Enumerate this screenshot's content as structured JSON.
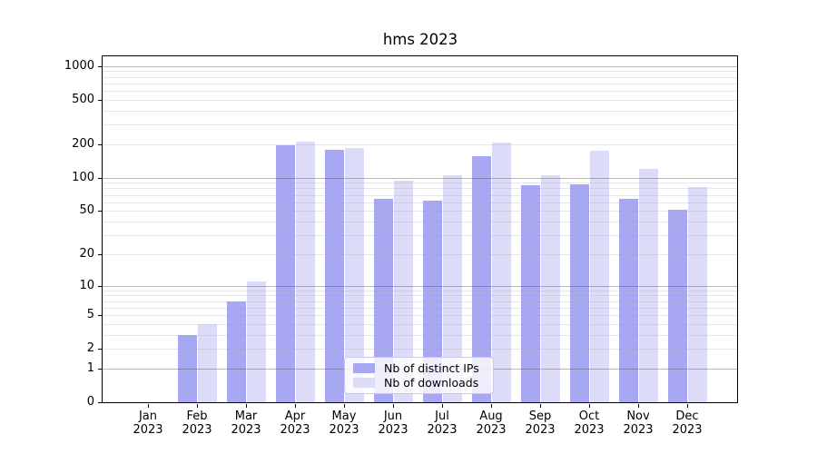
{
  "title": "hms 2023",
  "chart_data": {
    "type": "bar",
    "title": "hms 2023",
    "y_scale": "log1p",
    "ylim": [
      0,
      1220
    ],
    "grid": "both",
    "legend_position": "lower-center",
    "yticks": [
      {
        "label": "1000",
        "value": 1000
      },
      {
        "label": "500",
        "value": 500
      },
      {
        "label": "200",
        "value": 200
      },
      {
        "label": "100",
        "value": 100
      },
      {
        "label": "50",
        "value": 50
      },
      {
        "label": "20",
        "value": 20
      },
      {
        "label": "10",
        "value": 10
      },
      {
        "label": "5",
        "value": 5
      },
      {
        "label": "2",
        "value": 2
      },
      {
        "label": "1",
        "value": 1
      },
      {
        "label": "0",
        "value": 0
      }
    ],
    "grid_major_values": [
      1,
      10,
      100,
      1000
    ],
    "grid_minor_values": [
      2,
      3,
      4,
      5,
      6,
      7,
      8,
      9,
      20,
      30,
      40,
      50,
      60,
      70,
      80,
      90,
      200,
      300,
      400,
      500,
      600,
      700,
      800,
      900
    ],
    "categories": [
      {
        "month": "Jan",
        "year": "2023"
      },
      {
        "month": "Feb",
        "year": "2023"
      },
      {
        "month": "Mar",
        "year": "2023"
      },
      {
        "month": "Apr",
        "year": "2023"
      },
      {
        "month": "May",
        "year": "2023"
      },
      {
        "month": "Jun",
        "year": "2023"
      },
      {
        "month": "Jul",
        "year": "2023"
      },
      {
        "month": "Aug",
        "year": "2023"
      },
      {
        "month": "Sep",
        "year": "2023"
      },
      {
        "month": "Oct",
        "year": "2023"
      },
      {
        "month": "Nov",
        "year": "2023"
      },
      {
        "month": "Dec",
        "year": "2023"
      }
    ],
    "series": [
      {
        "name": "Nb of distinct IPs",
        "color": "#a8a8f2",
        "values": [
          0,
          3,
          7,
          197,
          178,
          64,
          62,
          155,
          85,
          87,
          64,
          51
        ]
      },
      {
        "name": "Nb of downloads",
        "color": "#dcdcf8",
        "values": [
          0,
          4,
          11,
          210,
          186,
          94,
          106,
          208,
          106,
          173,
          119,
          82
        ]
      }
    ]
  }
}
